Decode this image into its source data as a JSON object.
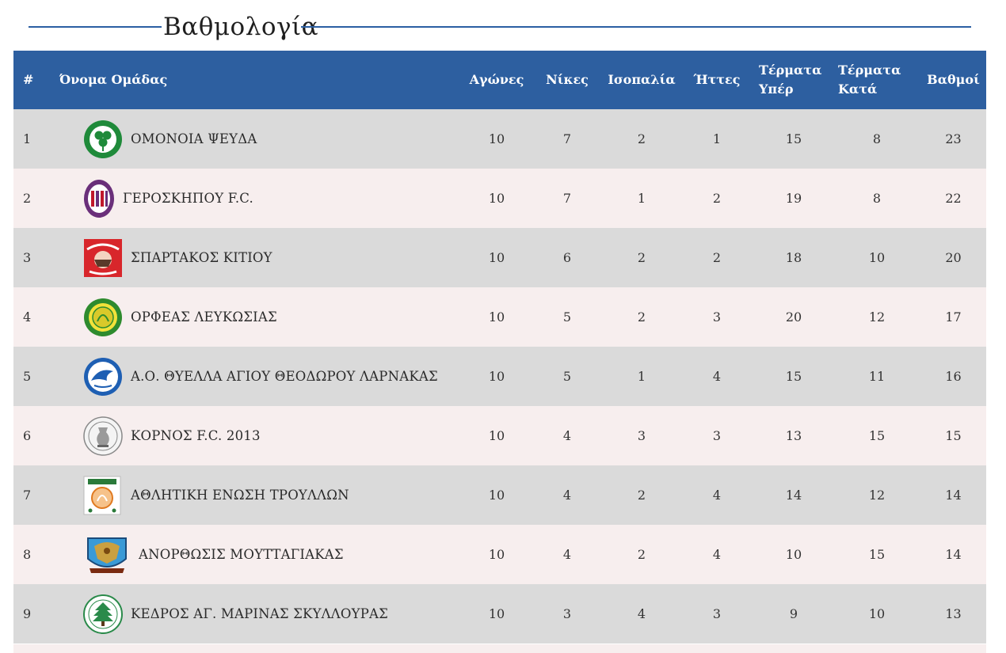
{
  "page": {
    "title": "Βαθμολογία"
  },
  "table": {
    "headers": {
      "pos": "#",
      "team": "Όνομα Ομάδας",
      "played": "Αγώνες",
      "wins": "Νίκες",
      "draws": "Ισοπαλία",
      "losses": "Ήττες",
      "gf_line1": "Τέρματα",
      "gf_line2": "Υπέρ",
      "ga_line1": "Τέρματα",
      "ga_line2": "Κατά",
      "points": "Βαθμοί"
    },
    "rows": [
      {
        "pos": "1",
        "team": "ΟΜΟΝΟΙΑ ΨΕΥΔΑ",
        "played": "10",
        "wins": "7",
        "draws": "2",
        "losses": "1",
        "gf": "15",
        "ga": "8",
        "points": "23",
        "logo": "clover-crest-icon"
      },
      {
        "pos": "2",
        "team": "ΓΕΡΟΣΚΗΠΟΥ F.C.",
        "played": "10",
        "wins": "7",
        "draws": "1",
        "losses": "2",
        "gf": "19",
        "ga": "8",
        "points": "22",
        "logo": "striped-shield-crest-icon"
      },
      {
        "pos": "3",
        "team": "ΣΠΑΡΤΑΚΟΣ ΚΙΤΙΟΥ",
        "played": "10",
        "wins": "6",
        "draws": "2",
        "losses": "2",
        "gf": "18",
        "ga": "10",
        "points": "20",
        "logo": "red-warrior-crest-icon"
      },
      {
        "pos": "4",
        "team": "ΟΡΦΕΑΣ ΛΕΥΚΩΣΙΑΣ",
        "played": "10",
        "wins": "5",
        "draws": "2",
        "losses": "3",
        "gf": "20",
        "ga": "12",
        "points": "17",
        "logo": "green-yellow-crest-icon"
      },
      {
        "pos": "5",
        "team": "Α.Ο. ΘΥΕΛΛΑ ΑΓΙΟΥ ΘΕΟΔΩΡΟΥ ΛΑΡΝΑΚΑΣ",
        "played": "10",
        "wins": "5",
        "draws": "1",
        "losses": "4",
        "gf": "15",
        "ga": "11",
        "points": "16",
        "logo": "blue-bird-crest-icon"
      },
      {
        "pos": "6",
        "team": "ΚΟΡΝΟΣ F.C. 2013",
        "played": "10",
        "wins": "4",
        "draws": "3",
        "losses": "3",
        "gf": "13",
        "ga": "15",
        "points": "15",
        "logo": "vase-crest-icon"
      },
      {
        "pos": "7",
        "team": "ΑΘΛΗΤΙΚΗ ΕΝΩΣΗ ΤΡΟΥΛΛΩΝ",
        "played": "10",
        "wins": "4",
        "draws": "2",
        "losses": "4",
        "gf": "14",
        "ga": "12",
        "points": "14",
        "logo": "orange-emblem-crest-icon"
      },
      {
        "pos": "8",
        "team": "ΑΝΟΡΘΩΣΙΣ ΜΟΥΤΤΑΓΙΑΚΑΣ",
        "played": "10",
        "wins": "4",
        "draws": "2",
        "losses": "4",
        "gf": "10",
        "ga": "15",
        "points": "14",
        "logo": "double-eagle-crest-icon"
      },
      {
        "pos": "9",
        "team": "ΚΕΔΡΟΣ ΑΓ. ΜΑΡΙΝΑΣ ΣΚΥΛΛΟΥΡΑΣ",
        "played": "10",
        "wins": "3",
        "draws": "4",
        "losses": "3",
        "gf": "9",
        "ga": "10",
        "points": "13",
        "logo": "cedar-tree-crest-icon"
      }
    ]
  }
}
